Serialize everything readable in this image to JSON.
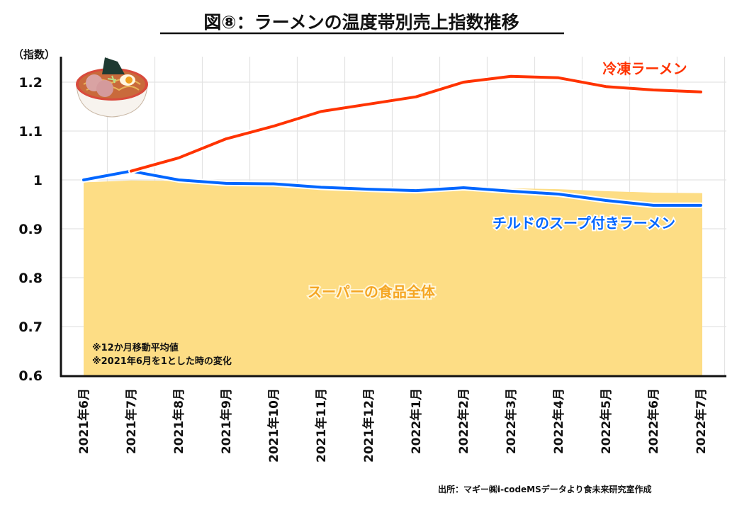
{
  "chart_data": {
    "type": "line",
    "title": "図⑧：ラーメンの温度帯別売上指数推移",
    "ylabel": "（指数）",
    "xlabel": "",
    "ylim": [
      0.6,
      1.25
    ],
    "yticks": [
      0.6,
      0.7,
      0.8,
      0.9,
      1,
      1.1,
      1.2
    ],
    "ytick_labels": [
      "0.6",
      "0.7",
      "0.8",
      "0.9",
      "1",
      "1.1",
      "1.2"
    ],
    "grid": true,
    "categories": [
      "2021年6月",
      "2021年7月",
      "2021年8月",
      "2021年9月",
      "2021年10月",
      "2021年11月",
      "2021年12月",
      "2022年1月",
      "2022年2月",
      "2022年3月",
      "2022年4月",
      "2022年5月",
      "2022年6月",
      "2022年7月"
    ],
    "series": [
      {
        "name": "スーパーの食品全体",
        "kind": "area",
        "color": "#FDDD85",
        "label_color": "#F5A623",
        "values": [
          0.995,
          0.999,
          0.998,
          0.992,
          0.991,
          0.985,
          0.981,
          0.981,
          0.984,
          0.983,
          0.981,
          0.977,
          0.974,
          0.973
        ]
      },
      {
        "name": "冷凍ラーメン",
        "kind": "line",
        "color": "#FF3300",
        "values": [
          null,
          1.018,
          1.045,
          1.084,
          1.11,
          1.14,
          1.155,
          1.17,
          1.2,
          1.212,
          1.209,
          1.191,
          1.184,
          1.18
        ]
      },
      {
        "name": "チルドのスープ付きラーメン",
        "kind": "line",
        "color": "#0066FF",
        "values": [
          1.0,
          1.018,
          1.0,
          0.993,
          0.992,
          0.985,
          0.981,
          0.978,
          0.984,
          0.977,
          0.971,
          0.958,
          0.948,
          0.948
        ]
      }
    ],
    "annotations": [
      "※12か月移動平均値",
      "※2021年6月を1とした時の変化"
    ],
    "source": "出所：マギー㈱i-codeMSデータより食未来研究室作成",
    "image": "ramen-bowl-illustration"
  }
}
